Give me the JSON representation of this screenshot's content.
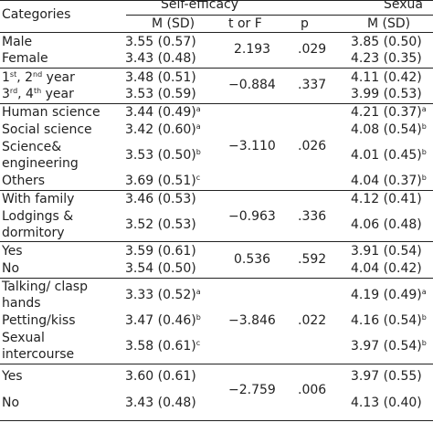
{
  "header": {
    "categories": "Categories",
    "self_efficacy": "Self-efficacy",
    "sexual": "Sexua",
    "m_sd": "M (SD)",
    "t_or_f": "t or F",
    "p": "p",
    "m_sd_2": "M (SD)"
  },
  "rows": {
    "male": {
      "label": "Male",
      "m1": "3.55 (0.57)",
      "m2": "3.85 (0.50)"
    },
    "female": {
      "label": "Female",
      "m1": "3.43 (0.48)",
      "m2": "4.23 (0.35)"
    },
    "gender_stat": {
      "t": "2.193",
      "p": ".029"
    },
    "y12": {
      "label_a": "1",
      "sup_a": "st",
      "label_b": ", 2",
      "sup_b": "nd",
      "label_c": " year",
      "m1": "3.48 (0.51)",
      "m2": "4.11 (0.42)"
    },
    "y34": {
      "label_a": "3",
      "sup_a": "rd",
      "label_b": ", 4",
      "sup_b": "th",
      "label_c": " year",
      "m1": "3.53 (0.59)",
      "m2": "3.99 (0.53)"
    },
    "year_stat": {
      "t": "−0.884",
      "p": ".337"
    },
    "human": {
      "label": "Human science",
      "m1": "3.44 (0.49)",
      "s1": "a",
      "m2": "4.21 (0.37)",
      "s2": "a"
    },
    "social": {
      "label": "Social science",
      "m1": "3.42 (0.60)",
      "s1": "a",
      "m2": "4.08 (0.54)",
      "s2": "b"
    },
    "sci": {
      "label1": "Science&",
      "label2": "engineering",
      "m1": "3.53 (0.50)",
      "s1": "b",
      "m2": "4.01 (0.45)",
      "s2": "b"
    },
    "others": {
      "label": "Others",
      "m1": "3.69 (0.51)",
      "s1": "c",
      "m2": "4.04 (0.37)",
      "s2": "b"
    },
    "major_stat": {
      "t": "−3.110",
      "p": ".026"
    },
    "family": {
      "label": "With family",
      "m1": "3.46 (0.53)",
      "m2": "4.12 (0.41)"
    },
    "lodgings": {
      "label1": "Lodgings &",
      "label2": "dormitory",
      "m1": "3.52 (0.53)",
      "m2": "4.06 (0.48)"
    },
    "residence_stat": {
      "t": "−0.963",
      "p": ".336"
    },
    "yes1": {
      "label": "Yes",
      "m1": "3.59 (0.61)",
      "m2": "3.91 (0.54)"
    },
    "no1": {
      "label": "No",
      "m1": "3.54 (0.50)",
      "m2": "4.04 (0.42)"
    },
    "yn1_stat": {
      "t": "0.536",
      "p": ".592"
    },
    "talk": {
      "label1": "Talking/ clasp",
      "label2": "hands",
      "m1": "3.33 (0.52)",
      "s1": "a",
      "m2": "4.19 (0.49)",
      "s2": "a"
    },
    "pet": {
      "label": "Petting/kiss",
      "m1": "3.47 (0.46)",
      "s1": "b",
      "m2": "4.16 (0.54)",
      "s2": "b"
    },
    "sex": {
      "label1": "Sexual",
      "label2": "intercourse",
      "m1": "3.58 (0.61)",
      "s1": "c",
      "m2": "3.97 (0.54)",
      "s2": "b"
    },
    "contact_stat": {
      "t": "−3.846",
      "p": ".022"
    },
    "yes2": {
      "label": "Yes",
      "m1": "3.60 (0.61)",
      "m2": "3.97 (0.55)"
    },
    "no2": {
      "label": "No",
      "m1": "3.43 (0.48)",
      "m2": "4.13 (0.40)"
    },
    "yn2_stat": {
      "t": "−2.759",
      "p": ".006"
    }
  }
}
